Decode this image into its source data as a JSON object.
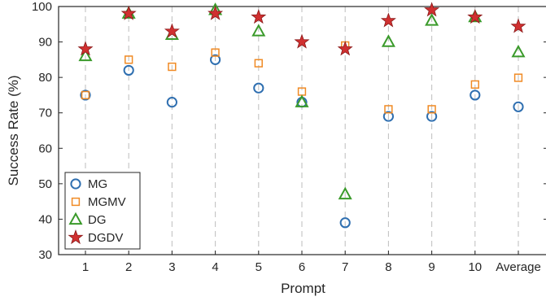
{
  "chart_data": {
    "type": "scatter",
    "xlabel": "Prompt",
    "ylabel": "Success Rate (%)",
    "categories": [
      "1",
      "2",
      "3",
      "4",
      "5",
      "6",
      "7",
      "8",
      "9",
      "10",
      "Average"
    ],
    "ylim": [
      30,
      100
    ],
    "yticks": [
      30,
      40,
      50,
      60,
      70,
      80,
      90,
      100
    ],
    "grid": "vertical dashed lines at each category",
    "legend_position": "bottom-left",
    "series": [
      {
        "name": "MG",
        "marker": "circle",
        "color": "#2f6fb0",
        "values": [
          75,
          82,
          73,
          85,
          77,
          73,
          39,
          69,
          69,
          75,
          71.7
        ]
      },
      {
        "name": "MGMV",
        "marker": "square",
        "color": "#f08a24",
        "values": [
          75,
          85,
          83,
          87,
          84,
          76,
          89,
          71,
          71,
          78,
          79.9
        ]
      },
      {
        "name": "DG",
        "marker": "triangle",
        "color": "#3a9a2a",
        "values": [
          86,
          98,
          92,
          99,
          93,
          73,
          47,
          90,
          96,
          97,
          87.1
        ]
      },
      {
        "name": "DGDV",
        "marker": "star",
        "color": "#d03030",
        "values": [
          88,
          98,
          93,
          98,
          97,
          90,
          88,
          96,
          99,
          97,
          94.4
        ]
      }
    ]
  }
}
